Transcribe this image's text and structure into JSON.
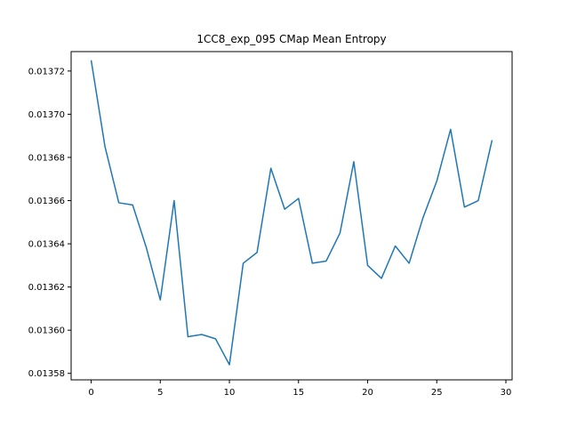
{
  "chart_data": {
    "type": "line",
    "title": "1CC8_exp_095 CMap Mean Entropy",
    "xlabel": "",
    "ylabel": "",
    "xlim": [
      -1.45,
      30.45
    ],
    "ylim": [
      0.013577,
      0.013729
    ],
    "grid": false,
    "line_color": "#1f77b4",
    "x_ticks": [
      0,
      5,
      10,
      15,
      20,
      25,
      30
    ],
    "x_tick_labels": [
      "0",
      "5",
      "10",
      "15",
      "20",
      "25",
      "30"
    ],
    "y_ticks": [
      0.01358,
      0.0136,
      0.01362,
      0.01364,
      0.01366,
      0.01368,
      0.0137,
      0.01372
    ],
    "y_tick_labels": [
      "0.01358",
      "0.01360",
      "0.01362",
      "0.01364",
      "0.01366",
      "0.01368",
      "0.01370",
      "0.01372"
    ],
    "series": [
      {
        "x": [
          0,
          1,
          2,
          3,
          4,
          5,
          6,
          7,
          8,
          9,
          10,
          11,
          12,
          13,
          14,
          15,
          16,
          17,
          18,
          19,
          20,
          21,
          22,
          23,
          24,
          25,
          26,
          27,
          28,
          29
        ],
        "values": [
          0.013725,
          0.013685,
          0.013659,
          0.013658,
          0.013638,
          0.013614,
          0.01366,
          0.013597,
          0.013598,
          0.013596,
          0.013584,
          0.013631,
          0.013636,
          0.013675,
          0.013656,
          0.013661,
          0.013631,
          0.013632,
          0.013645,
          0.013678,
          0.01363,
          0.013624,
          0.013639,
          0.013631,
          0.013652,
          0.013669,
          0.013693,
          0.013657,
          0.01366,
          0.013688
        ]
      }
    ]
  }
}
